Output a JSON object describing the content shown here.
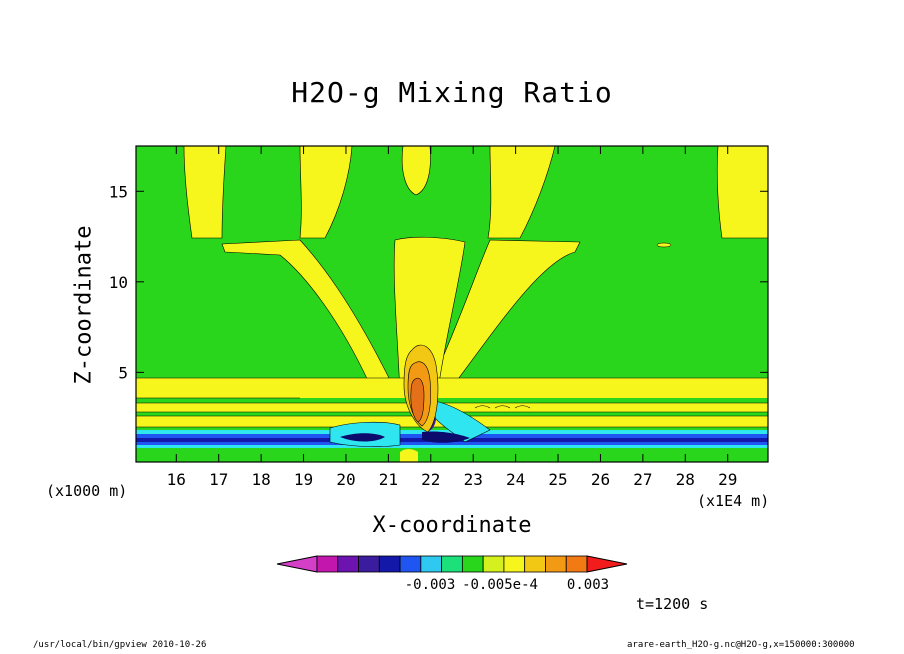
{
  "chart_data": {
    "type": "heatmap",
    "title": "H2O-g Mixing Ratio",
    "xlabel": "X-coordinate",
    "ylabel": "Z-coordinate",
    "x_unit_note": "(x1E4 m)",
    "y_unit_note": "(x1000 m)",
    "x_ticks": [
      16,
      17,
      18,
      19,
      20,
      21,
      22,
      23,
      24,
      25,
      26,
      27,
      28,
      29
    ],
    "y_ticks": [
      5,
      10,
      15
    ],
    "xlim": [
      15.05,
      29.95
    ],
    "ylim": [
      0.05,
      17.5
    ],
    "colorbar": {
      "labels": [
        "-0.003",
        "-0.005e-4",
        "0.003"
      ],
      "colors": [
        "#d43fc8",
        "#c316ad",
        "#6c13b0",
        "#3c1c9e",
        "#1318a8",
        "#1f55f0",
        "#2fc8f0",
        "#1ce07a",
        "#2ad61c",
        "#d4f01e",
        "#f6f61c",
        "#f2c814",
        "#f29a14",
        "#f27a14",
        "#f21c1c"
      ]
    },
    "fields": {
      "background": "#2ad61c",
      "yellow": "#f6f61c",
      "light_orange": "#f2c814",
      "orange": "#f29a14",
      "dark_orange": "#e5701a",
      "cyan": "#2fe6f0",
      "blue": "#1f55f0",
      "navy": "#1318a8",
      "dark_navy": "#0d0a6e",
      "purple": "#3c1c9e"
    },
    "annotation_time": "t=1200 s"
  },
  "footer": {
    "left": "/usr/local/bin/gpview  2010-10-26",
    "right": "arare-earth_H2O-g.nc@H2O-g,x=150000:300000"
  }
}
